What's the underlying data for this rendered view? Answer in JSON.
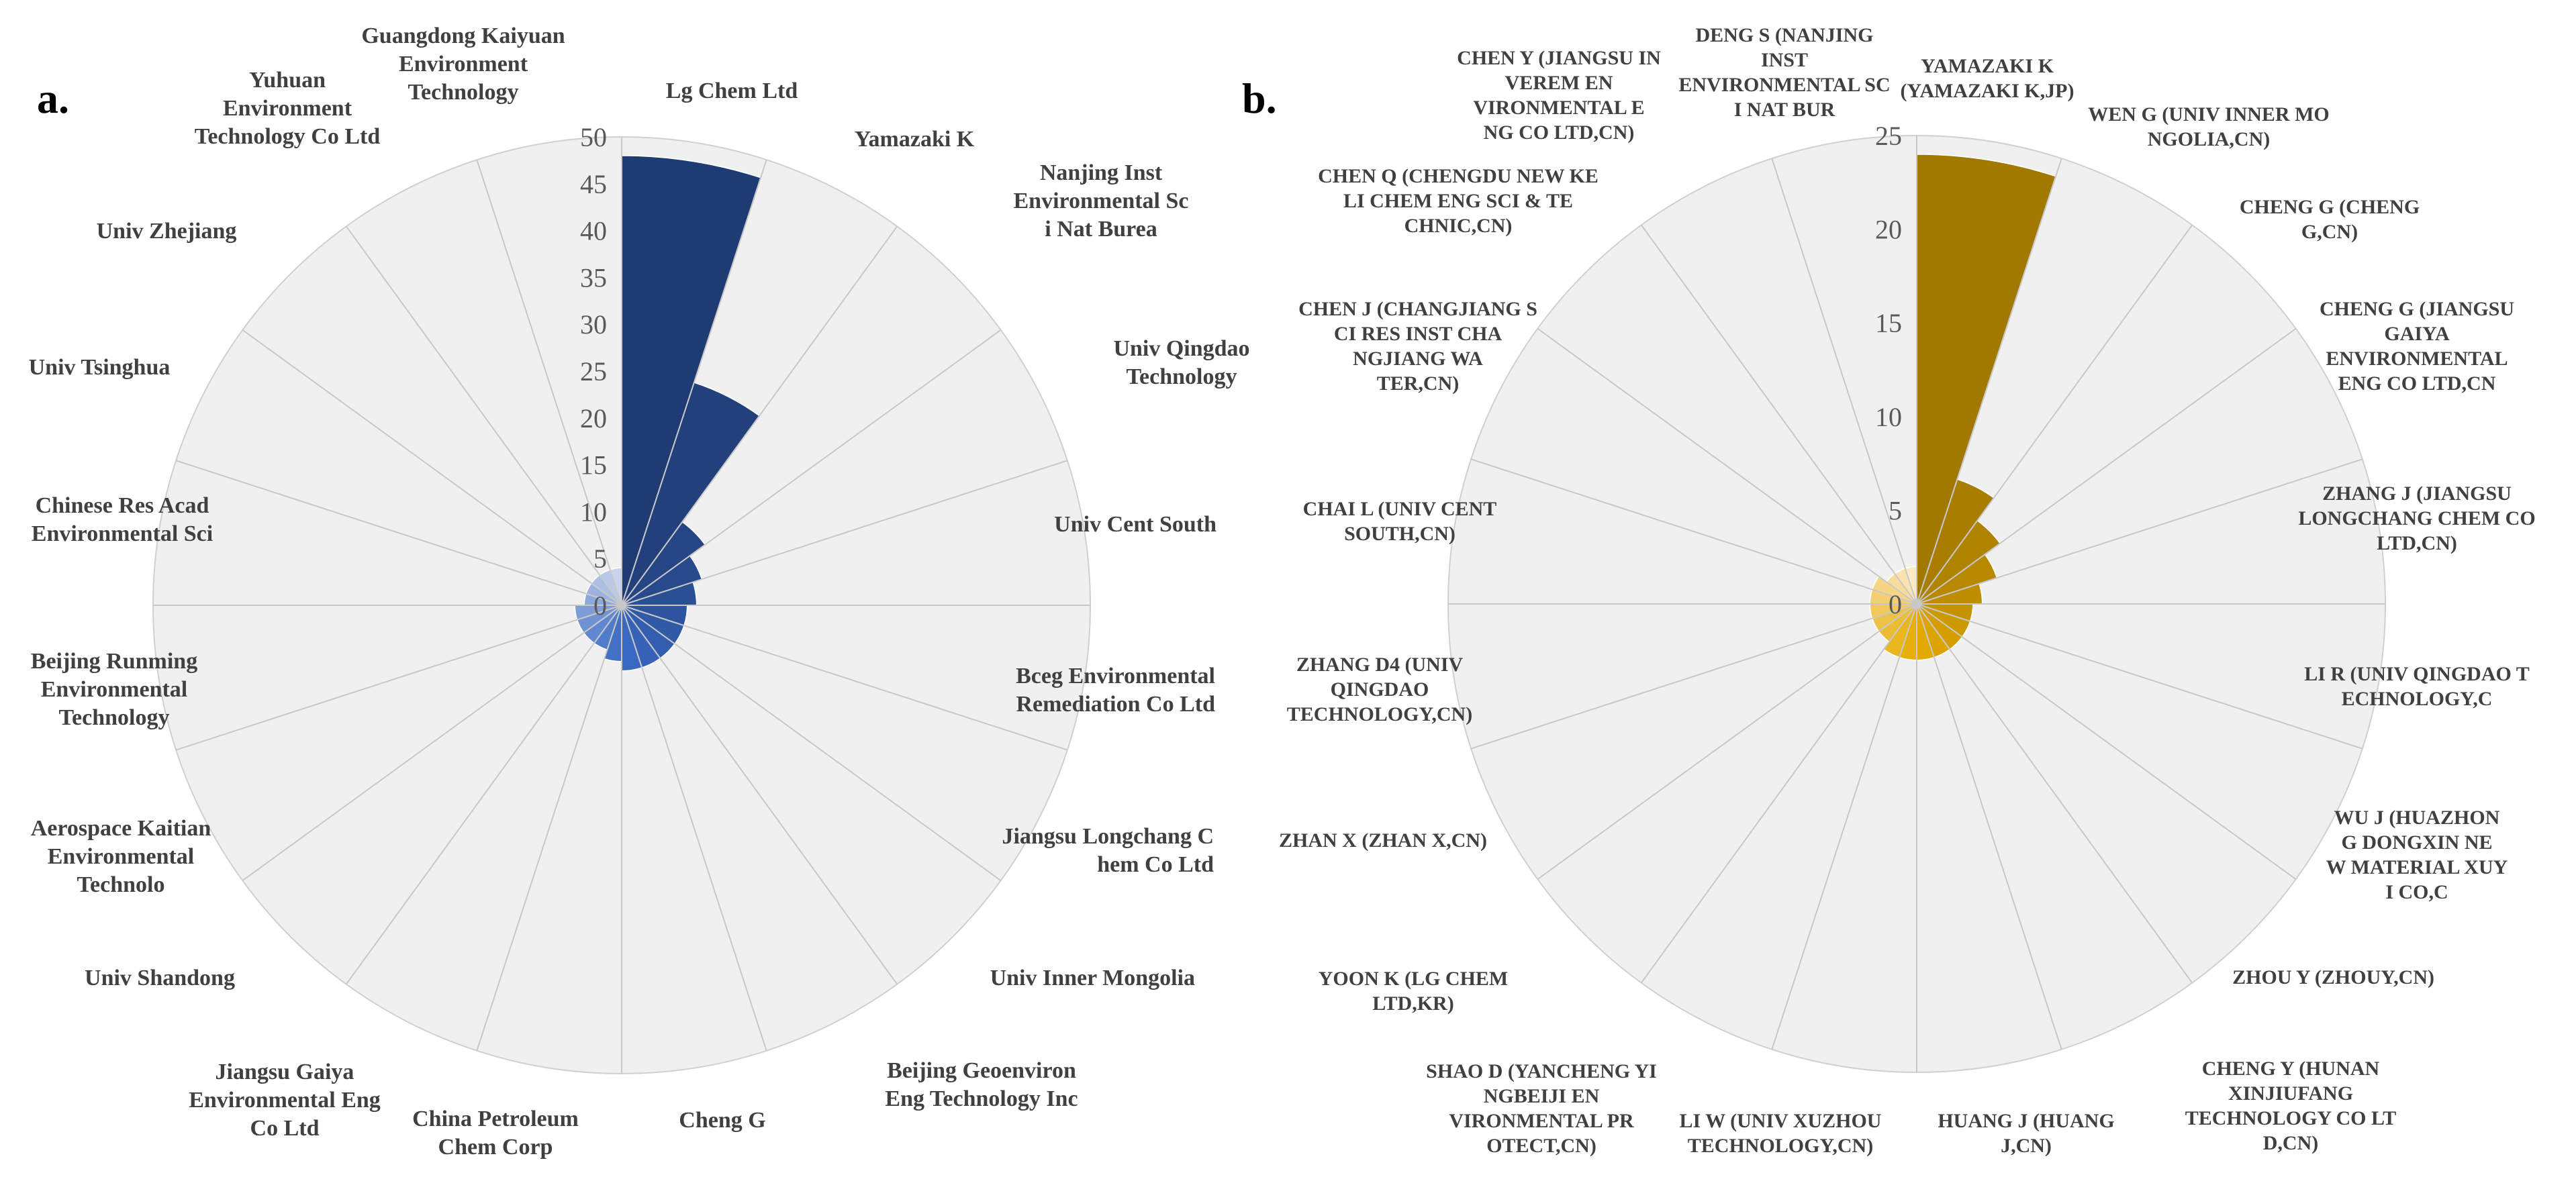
{
  "chart_data": [
    {
      "type": "polar-bar",
      "panel_label": "a.",
      "title": "",
      "rmax": 50,
      "ticks": [
        "0",
        "5",
        "10",
        "15",
        "20",
        "25",
        "30",
        "35",
        "40",
        "45",
        "50"
      ],
      "tick_values": [
        0,
        5,
        10,
        15,
        20,
        25,
        30,
        35,
        40,
        45,
        50
      ],
      "grid": true,
      "bar_color_gradient": [
        "#1f3b73",
        "#3a6bc4",
        "#c9d4ec"
      ],
      "categories": [
        "Lg Chem Ltd",
        "Yamazaki K",
        "Nanjing Inst Environmental Sci Nat Burea",
        "Univ Qingdao Technology",
        "Univ Cent South",
        "Bceg Environmental Remediation Co Ltd",
        "Jiangsu Longchang Chem Co Ltd",
        "Univ Inner Mongolia",
        "Beijing Geoenviron Eng Technology Inc",
        "Cheng G",
        "China Petroleum Chem Corp",
        "Jiangsu Gaiya Environmental Eng Co Ltd",
        "Univ Shandong",
        "Aerospace Kaitian Environmental Technolo",
        "Beijing Runming Environmental Technology",
        "Chinese Res Acad Environmental Sci",
        "Univ Tsinghua",
        "Univ Zhejiang",
        "Yuhuan Environment Technology Co Ltd",
        "Guangdong Kaiyuan Environment Technology"
      ],
      "values": [
        48,
        25,
        11,
        9,
        8,
        7,
        7,
        7,
        7,
        7,
        6,
        5,
        5,
        5,
        5,
        4,
        4,
        4,
        4,
        4
      ]
    },
    {
      "type": "polar-bar",
      "panel_label": "b.",
      "title": "",
      "rmax": 25,
      "ticks": [
        "0",
        "5",
        "10",
        "15",
        "20",
        "25"
      ],
      "tick_values": [
        0,
        5,
        10,
        15,
        20,
        25
      ],
      "grid": true,
      "bar_color_gradient": [
        "#a17800",
        "#e6ac00",
        "#fde9c4"
      ],
      "categories": [
        "YAMAZAKI K (YAMAZAKI K,JP)",
        "WEN G (UNIV INNER MONGOLIA,CN)",
        "CHENG G (CHENG G,CN)",
        "CHENG G (JIANGSU GAIYA ENVIRONMENTAL ENG CO LTD,CN)",
        "ZHANG J (JIANGSU LONGCHANG CHEM CO LTD,CN)",
        "LI R (UNIV QINGDAO TECHNOLOGY,CN)",
        "WU J (HUAZHONG DONGXIN NEW MATERIAL XUYI CO,CN)",
        "ZHOU Y (ZHOUY,CN)",
        "CHENG Y (HUNAN XINJIUFANG TECHNOLOGY CO LTD,CN)",
        "HUANG J (HUANG J,CN)",
        "LI W (UNIV XUZHOU TECHNOLOGY,CN)",
        "SHAO D (YANCHENG YINGBEIJI ENVIRONMENTAL PROTECT,CN)",
        "YOON K (LG CHEM LTD,KR)",
        "ZHAN X (ZHAN X,CN)",
        "ZHANG D4 (UNIV QINGDAO TECHNOLOGY,CN)",
        "CHAI L (UNIV CENT SOUTH,CN)",
        "CHEN J (CHANGJIANG SCI RES INST CHANGJIANG WATER,CN)",
        "CHEN Q (CHENGDU NEW KELI CHEM ENG SCI & TECHNIC,CN)",
        "CHEN Y (JIANGSU INVEREM ENVIRONMENTAL ENG CO LTD,CN)",
        "DENG S (NANJING INST ENVIRONMENTAL SCI NAT BUREA,CN)"
      ],
      "values": [
        24,
        7,
        5.5,
        4.5,
        3.5,
        3,
        3,
        3,
        3,
        3,
        3,
        3,
        2.5,
        2.5,
        2.5,
        2.5,
        2.5,
        2,
        2,
        2
      ]
    }
  ]
}
